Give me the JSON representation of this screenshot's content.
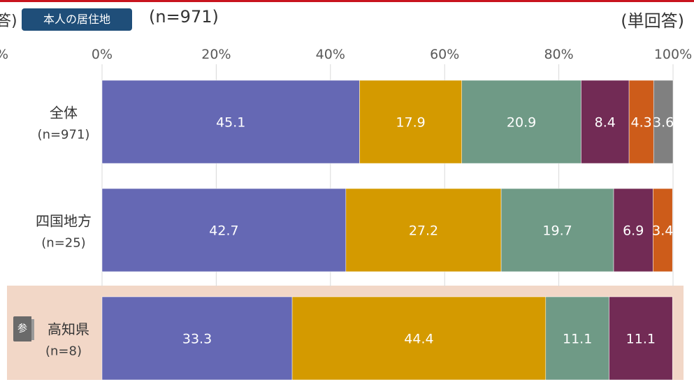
{
  "header": {
    "cut_text": "答)",
    "badge": "本人の居住地",
    "n_label": "(n=971)",
    "answer_type": "(単回答)",
    "ref_icon": "参"
  },
  "chart_data": {
    "type": "bar",
    "orientation": "horizontal-stacked-100",
    "categories": [
      {
        "name": "全体",
        "n": "(n=971)"
      },
      {
        "name": "四国地方",
        "n": "(n=25)"
      },
      {
        "name": "高知県",
        "n": "(n=8)"
      }
    ],
    "series": [
      {
        "color": "#6568b4",
        "values": [
          45.1,
          42.7,
          33.3
        ]
      },
      {
        "color": "#d49a00",
        "values": [
          17.9,
          27.2,
          44.4
        ]
      },
      {
        "color": "#6f9a86",
        "values": [
          20.9,
          19.7,
          11.1
        ]
      },
      {
        "color": "#722b55",
        "values": [
          8.4,
          6.9,
          11.1
        ]
      },
      {
        "color": "#cd5c1a",
        "values": [
          4.3,
          3.4,
          null
        ]
      },
      {
        "color": "#808080",
        "values": [
          3.6,
          null,
          null
        ]
      }
    ],
    "xaxis": {
      "ticks": [
        "%",
        "0%",
        "20%",
        "40%",
        "60%",
        "80%",
        "100%"
      ],
      "range": [
        0,
        100
      ]
    },
    "grid": true,
    "highlighted_category": "高知県"
  }
}
